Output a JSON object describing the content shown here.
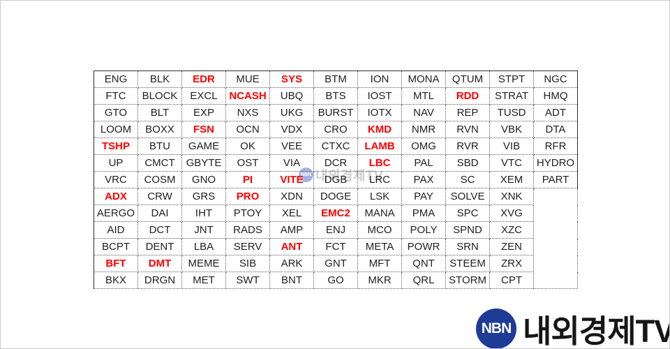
{
  "table": {
    "columns": 11,
    "rows": [
      [
        "ENG",
        "BLK",
        "EDR",
        "MUE",
        "SYS",
        "BTM",
        "ION",
        "MONA",
        "QTUM",
        "STPT",
        "NGC"
      ],
      [
        "FTC",
        "BLOCK",
        "EXCL",
        "NCASH",
        "UBQ",
        "BTS",
        "IOST",
        "MTL",
        "RDD",
        "STRAT",
        "HMQ"
      ],
      [
        "GTO",
        "BLT",
        "EXP",
        "NXS",
        "UKG",
        "BURST",
        "IOTX",
        "NAV",
        "REP",
        "TUSD",
        "ADT"
      ],
      [
        "LOOM",
        "BOXX",
        "FSN",
        "OCN",
        "VDX",
        "CRO",
        "KMD",
        "NMR",
        "RVN",
        "VBK",
        "DTA"
      ],
      [
        "TSHP",
        "BTU",
        "GAME",
        "OK",
        "VEE",
        "CTXC",
        "LAMB",
        "OMG",
        "RVR",
        "VIB",
        "RFR"
      ],
      [
        "UP",
        "CMCT",
        "GBYTE",
        "OST",
        "VIA",
        "DCR",
        "LBC",
        "PAL",
        "SBD",
        "VTC",
        "HYDRO"
      ],
      [
        "VRC",
        "COSM",
        "GNO",
        "PI",
        "VITE",
        "DGB",
        "LRC",
        "PAX",
        "SC",
        "XEM",
        "PART"
      ],
      [
        "ADX",
        "CRW",
        "GRS",
        "PRO",
        "XDN",
        "DOGE",
        "LSK",
        "PAY",
        "SOLVE",
        "XNK"
      ],
      [
        "AERGO",
        "DAI",
        "IHT",
        "PTOY",
        "XEL",
        "EMC2",
        "MANA",
        "PMA",
        "SPC",
        "XVG"
      ],
      [
        "AID",
        "DCT",
        "JNT",
        "RADS",
        "AMP",
        "ENJ",
        "MCO",
        "POLY",
        "SPND",
        "XZC"
      ],
      [
        "BCPT",
        "DENT",
        "LBA",
        "SERV",
        "ANT",
        "FCT",
        "META",
        "POWR",
        "SRN",
        "ZEN"
      ],
      [
        "BFT",
        "DMT",
        "MEME",
        "SIB",
        "ARK",
        "GNT",
        "MFT",
        "QNT",
        "STEEM",
        "ZRX"
      ],
      [
        "BKX",
        "DRGN",
        "MET",
        "SWT",
        "BNT",
        "GO",
        "MKR",
        "QRL",
        "STORM",
        "CPT"
      ]
    ],
    "highlighted": [
      "EDR",
      "SYS",
      "NCASH",
      "RDD",
      "FSN",
      "KMD",
      "TSHP",
      "LAMB",
      "LBC",
      "PI",
      "VITE",
      "ADX",
      "PRO",
      "EMC2",
      "ANT",
      "BFT",
      "DMT"
    ]
  },
  "logo": {
    "abbr": "NBN",
    "name": "내외경제TV"
  },
  "colors": {
    "highlight_red": "#fe0000",
    "logo_blue": "#1e3c96",
    "text": "#212121",
    "grid_border": "#595959"
  }
}
